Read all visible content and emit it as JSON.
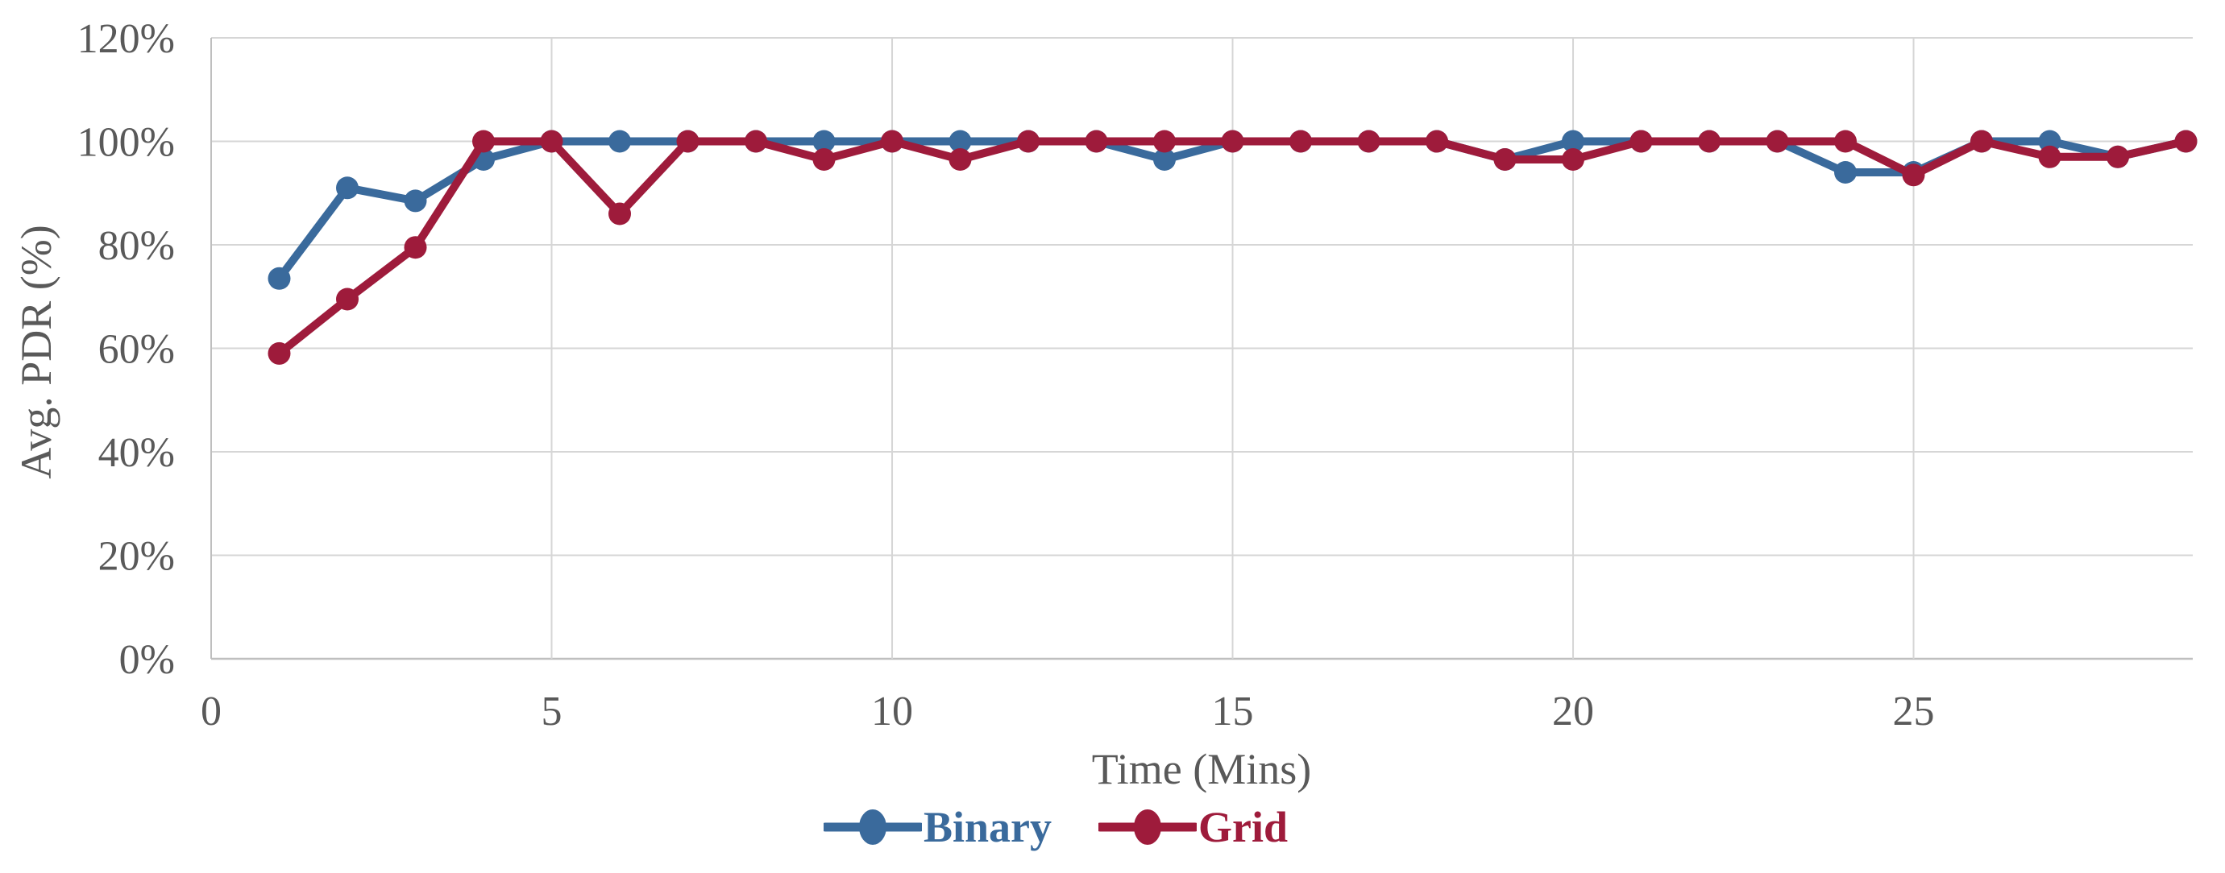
{
  "chart_data": {
    "type": "line",
    "title": "",
    "xlabel": "Time (Mins)",
    "ylabel": "Avg. PDR (%)",
    "x": [
      1,
      2,
      3,
      4,
      5,
      6,
      7,
      8,
      9,
      10,
      11,
      12,
      13,
      14,
      15,
      16,
      17,
      18,
      19,
      20,
      21,
      22,
      23,
      24,
      25,
      26,
      27,
      28,
      29
    ],
    "series": [
      {
        "name": "Binary",
        "color": "#3A6A9C",
        "values": [
          73.5,
          91,
          88.5,
          96.5,
          100,
          100,
          100,
          100,
          100,
          100,
          100,
          100,
          100,
          96.5,
          100,
          100,
          100,
          100,
          96.5,
          100,
          100,
          100,
          100,
          94,
          94,
          100,
          100,
          97,
          100
        ]
      },
      {
        "name": "Grid",
        "color": "#9E1B3B",
        "values": [
          59,
          69.5,
          79.5,
          100,
          100,
          86,
          100,
          100,
          96.5,
          100,
          96.5,
          100,
          100,
          100,
          100,
          100,
          100,
          100,
          96.5,
          96.5,
          100,
          100,
          100,
          100,
          93.5,
          100,
          97,
          97,
          100
        ]
      }
    ],
    "xlim": [
      0,
      29.1
    ],
    "ylim": [
      0,
      120
    ],
    "xticks": [
      0,
      5,
      10,
      15,
      20,
      25
    ],
    "xtick_labels": [
      "0",
      "5",
      "10",
      "15",
      "20",
      "25"
    ],
    "ytick_values": [
      0,
      20,
      40,
      60,
      80,
      100,
      120
    ],
    "ytick_labels": [
      "0%",
      "20%",
      "40%",
      "60%",
      "80%",
      "100%",
      "120%"
    ],
    "grid": true,
    "legend_position": "bottom",
    "marker": "circle",
    "line_width": 10,
    "marker_radius": 14,
    "grid_color": "#D6D6D6",
    "axis_color": "#BFBFBF",
    "tick_label_color": "#595959"
  }
}
